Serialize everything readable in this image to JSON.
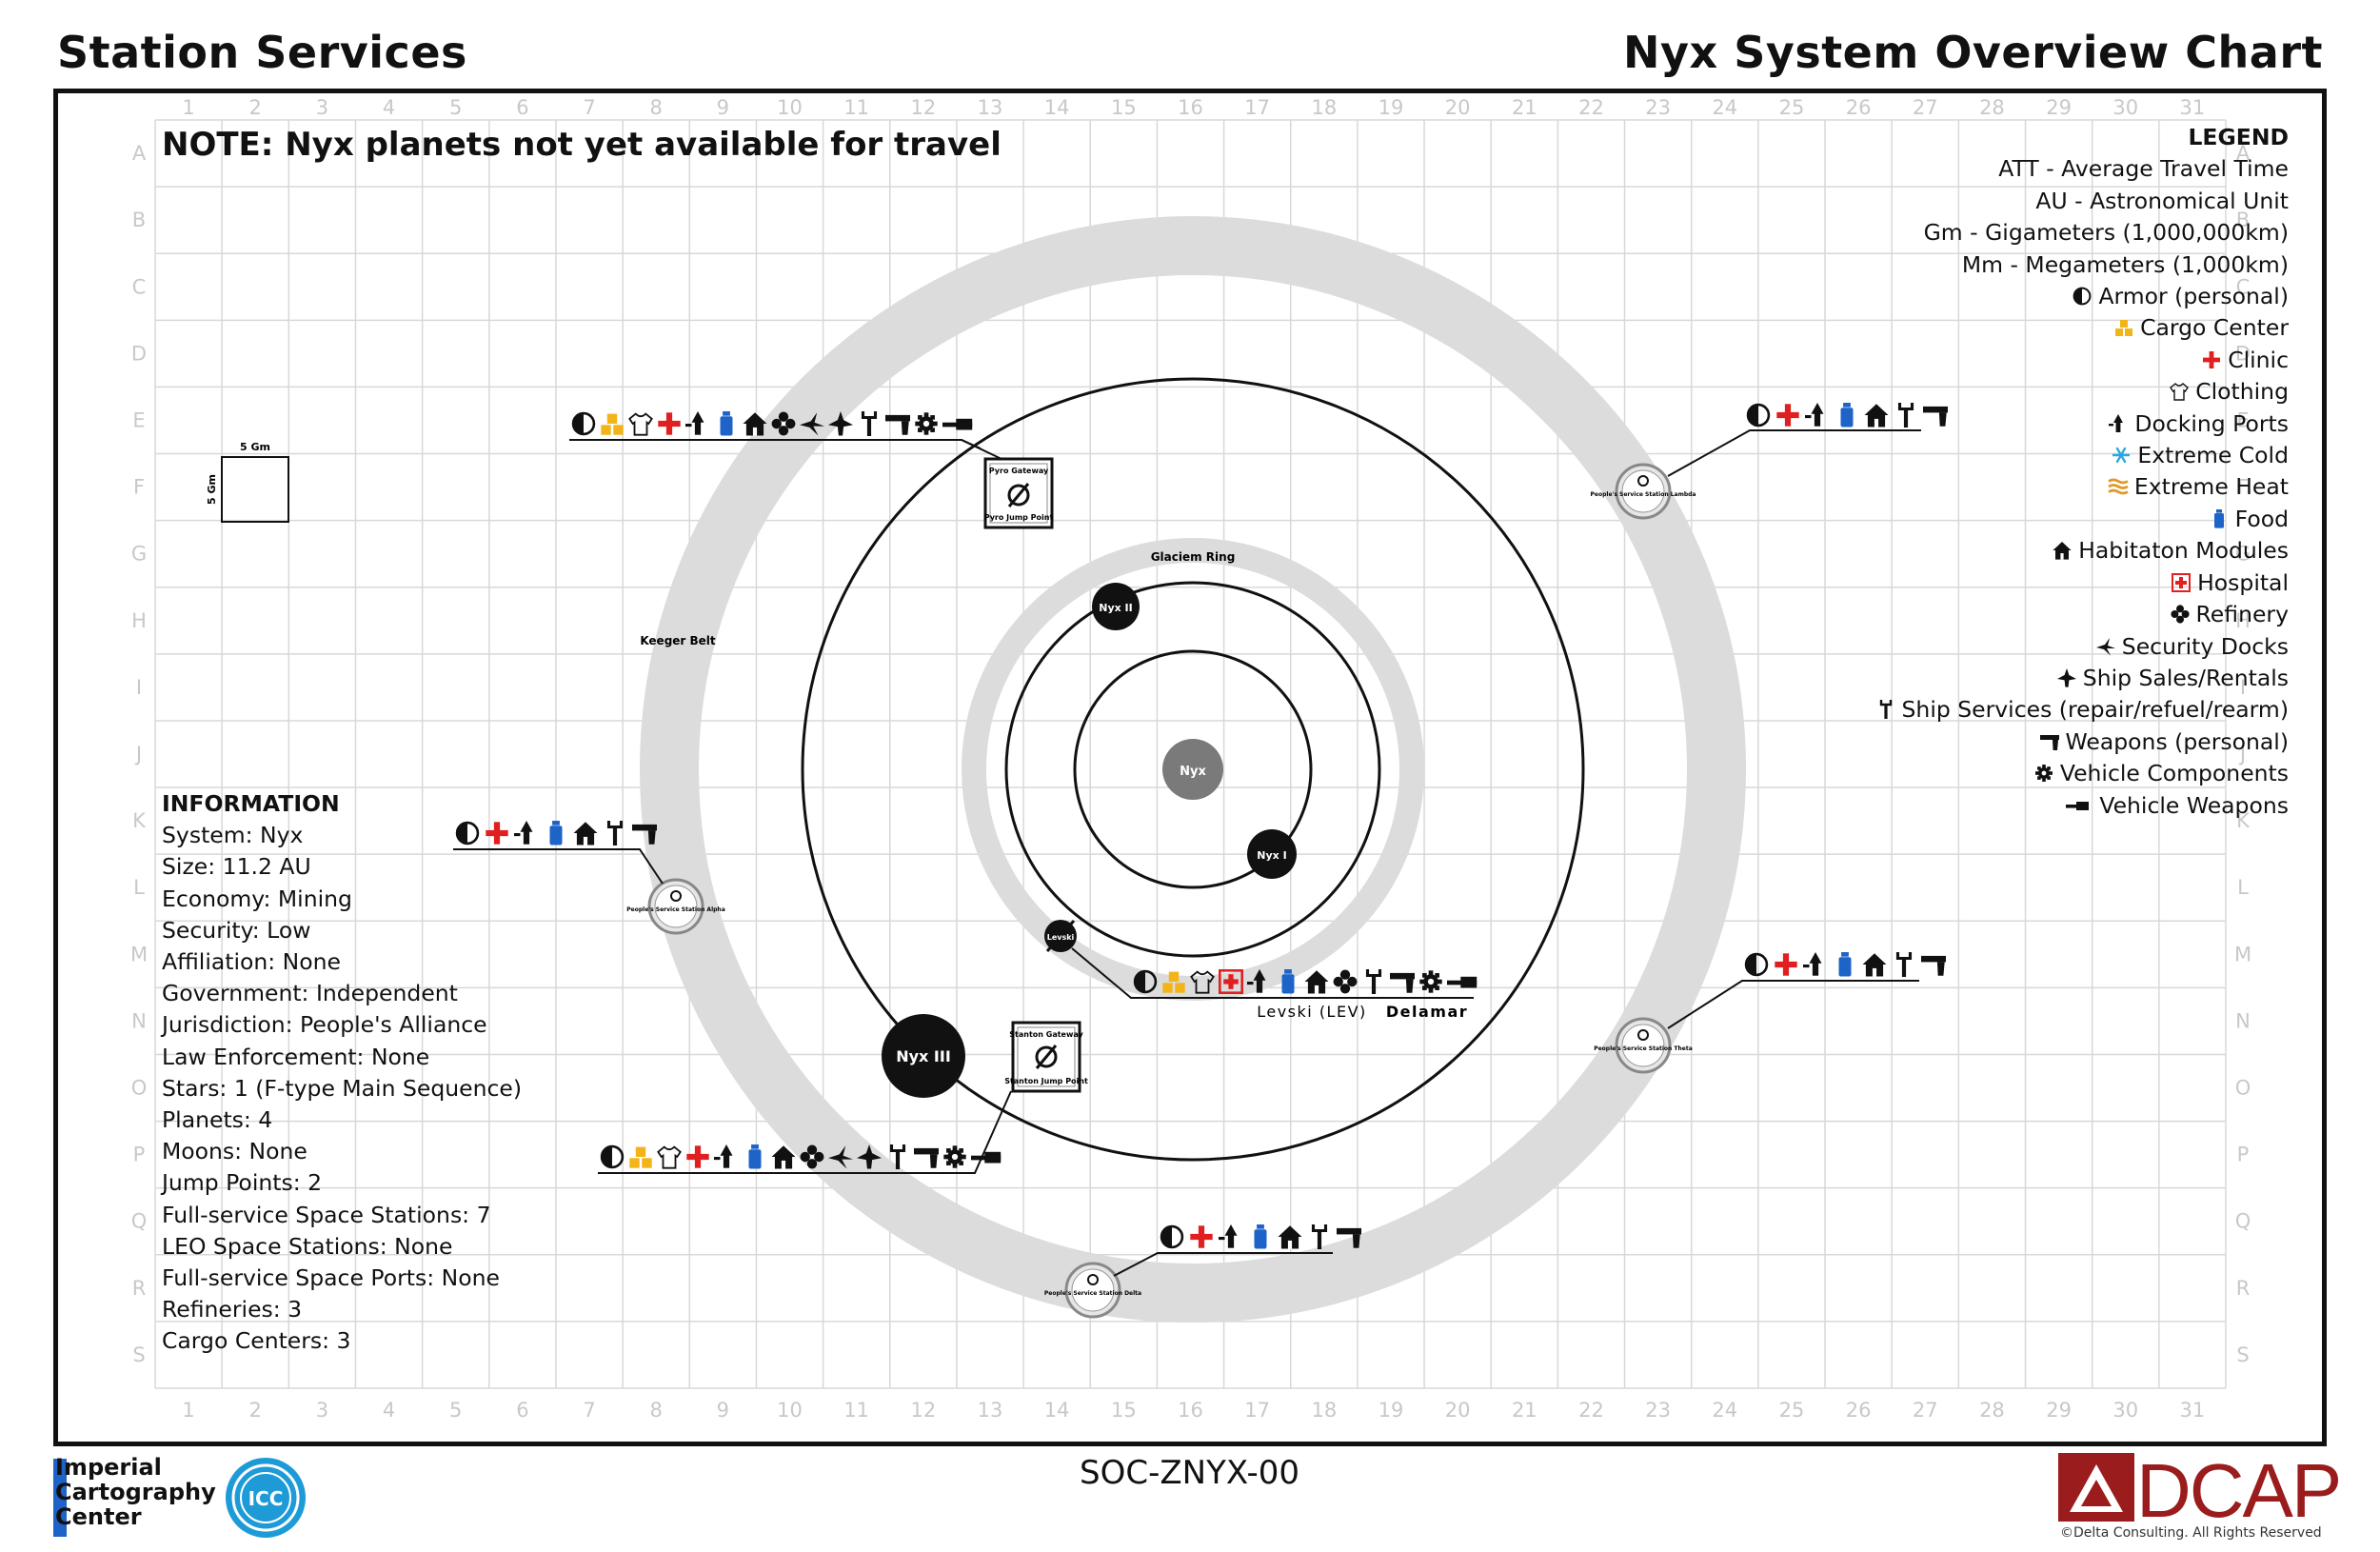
{
  "header": {
    "left_title": "Station Services",
    "right_title": "Nyx System Overview Chart"
  },
  "note": "NOTE: Nyx planets not yet available for travel",
  "grid": {
    "columns": [
      "1",
      "2",
      "3",
      "4",
      "5",
      "6",
      "7",
      "8",
      "9",
      "10",
      "11",
      "12",
      "13",
      "14",
      "15",
      "16",
      "17",
      "18",
      "19",
      "20",
      "21",
      "22",
      "23",
      "24",
      "25",
      "26",
      "27",
      "28",
      "29",
      "30",
      "31"
    ],
    "rows": [
      "A",
      "B",
      "C",
      "D",
      "E",
      "F",
      "G",
      "H",
      "I",
      "J",
      "K",
      "L",
      "M",
      "N",
      "O",
      "P",
      "Q",
      "R",
      "S"
    ]
  },
  "scale": {
    "label_x": "5 Gm",
    "label_y": "5 Gm"
  },
  "legend": {
    "title": "LEGEND",
    "abbreviations": [
      "ATT - Average Travel Time",
      "AU - Astronomical Unit",
      "Gm - Gigameters (1,000,000km)",
      "Mm - Megameters (1,000km)"
    ],
    "items": [
      {
        "icon": "armor-icon",
        "label": "Armor (personal)",
        "color": "#111111"
      },
      {
        "icon": "cargo-icon",
        "label": "Cargo Center",
        "color": "#f2b418"
      },
      {
        "icon": "clinic-icon",
        "label": "Clinic",
        "color": "#e02020"
      },
      {
        "icon": "clothing-icon",
        "label": "Clothing",
        "color": "#111111"
      },
      {
        "icon": "docking-icon",
        "label": "Docking Ports",
        "color": "#111111"
      },
      {
        "icon": "cold-icon",
        "label": "Extreme Cold",
        "color": "#2aa6e0"
      },
      {
        "icon": "heat-icon",
        "label": "Extreme Heat",
        "color": "#e09a28"
      },
      {
        "icon": "food-icon",
        "label": "Food",
        "color": "#1e63c8"
      },
      {
        "icon": "habitation-icon",
        "label": "Habitaton Modules",
        "color": "#111111"
      },
      {
        "icon": "hospital-icon",
        "label": "Hospital",
        "color": "#e02020"
      },
      {
        "icon": "refinery-icon",
        "label": "Refinery",
        "color": "#111111"
      },
      {
        "icon": "security-icon",
        "label": "Security Docks",
        "color": "#111111"
      },
      {
        "icon": "ship-sales-icon",
        "label": "Ship Sales/Rentals",
        "color": "#111111"
      },
      {
        "icon": "ship-services-icon",
        "label": "Ship Services (repair/refuel/rearm)",
        "color": "#111111"
      },
      {
        "icon": "weapons-icon",
        "label": "Weapons (personal)",
        "color": "#111111"
      },
      {
        "icon": "vehicle-components-icon",
        "label": "Vehicle Components",
        "color": "#111111"
      },
      {
        "icon": "vehicle-weapons-icon",
        "label": "Vehicle Weapons",
        "color": "#111111"
      }
    ]
  },
  "information": {
    "title": "INFORMATION",
    "lines": [
      "System: Nyx",
      "Size: 11.2 AU",
      "Economy: Mining",
      "Security: Low",
      "Affiliation: None",
      "Government: Independent",
      "Jurisdiction: People's Alliance",
      "Law Enforcement: None",
      "Stars: 1 (F-type Main Sequence)",
      "Planets: 4",
      "Moons: None",
      "Jump Points: 2",
      "Full-service Space Stations: 7",
      "LEO Space Stations: None",
      "Full-service Space Ports: None",
      "Refineries: 3",
      "Cargo Centers: 3"
    ]
  },
  "bodies": {
    "star": "Nyx",
    "nyx1": "Nyx I",
    "nyx2": "Nyx II",
    "nyx3": "Nyx III",
    "levski_marker": "Levski",
    "glaciem": "Glaciem Ring",
    "keeger": "Keeger Belt"
  },
  "jump_points": {
    "pyro": {
      "top": "Pyro Gateway",
      "bottom": "Pyro Jump Point"
    },
    "stanton": {
      "top": "Stanton Gateway",
      "bottom": "Stanton Jump Point"
    }
  },
  "stations": {
    "lambda": "People's Service Station Lambda",
    "alpha": "People's Service Station Alpha",
    "theta": "People's Service Station Theta",
    "delta": "People's Service Station Delta"
  },
  "levski": {
    "name": "Levski (LEV)",
    "planet": "Delamar"
  },
  "service_rows": {
    "pyro": [
      "armor-icon",
      "cargo-icon",
      "clothing-icon",
      "clinic-icon",
      "docking-icon",
      "food-icon",
      "habitation-icon",
      "refinery-icon",
      "security-icon",
      "ship-sales-icon",
      "ship-services-icon",
      "weapons-icon",
      "vehicle-components-icon",
      "vehicle-weapons-icon"
    ],
    "lambda": [
      "armor-icon",
      "clinic-icon",
      "docking-icon",
      "food-icon",
      "habitation-icon",
      "ship-services-icon",
      "weapons-icon"
    ],
    "alpha": [
      "armor-icon",
      "clinic-icon",
      "docking-icon",
      "food-icon",
      "habitation-icon",
      "ship-services-icon",
      "weapons-icon"
    ],
    "theta": [
      "armor-icon",
      "clinic-icon",
      "docking-icon",
      "food-icon",
      "habitation-icon",
      "ship-services-icon",
      "weapons-icon"
    ],
    "stanton": [
      "armor-icon",
      "cargo-icon",
      "clothing-icon",
      "clinic-icon",
      "docking-icon",
      "food-icon",
      "habitation-icon",
      "refinery-icon",
      "security-icon",
      "ship-sales-icon",
      "ship-services-icon",
      "weapons-icon",
      "vehicle-components-icon",
      "vehicle-weapons-icon"
    ],
    "delta": [
      "armor-icon",
      "clinic-icon",
      "docking-icon",
      "food-icon",
      "habitation-icon",
      "ship-services-icon",
      "weapons-icon"
    ],
    "levski": [
      "armor-icon",
      "cargo-icon",
      "clothing-icon",
      "hospital-icon",
      "docking-icon",
      "food-icon",
      "habitation-icon",
      "refinery-icon",
      "ship-services-icon",
      "weapons-icon",
      "vehicle-components-icon",
      "vehicle-weapons-icon"
    ]
  },
  "footer": {
    "code": "SOC-ZNYX-00",
    "icc_lines": [
      "Imperial",
      "Cartography",
      "Center"
    ],
    "icc_seal": "ICC",
    "dcap": "DCAP",
    "copyright": "©Delta Consulting.  All Rights Reserved"
  },
  "colors": {
    "ring": "#dcdcdc",
    "star": "#7a7a7a",
    "brand_red": "#9b1c1c",
    "icc_blue": "#1e63c8"
  }
}
